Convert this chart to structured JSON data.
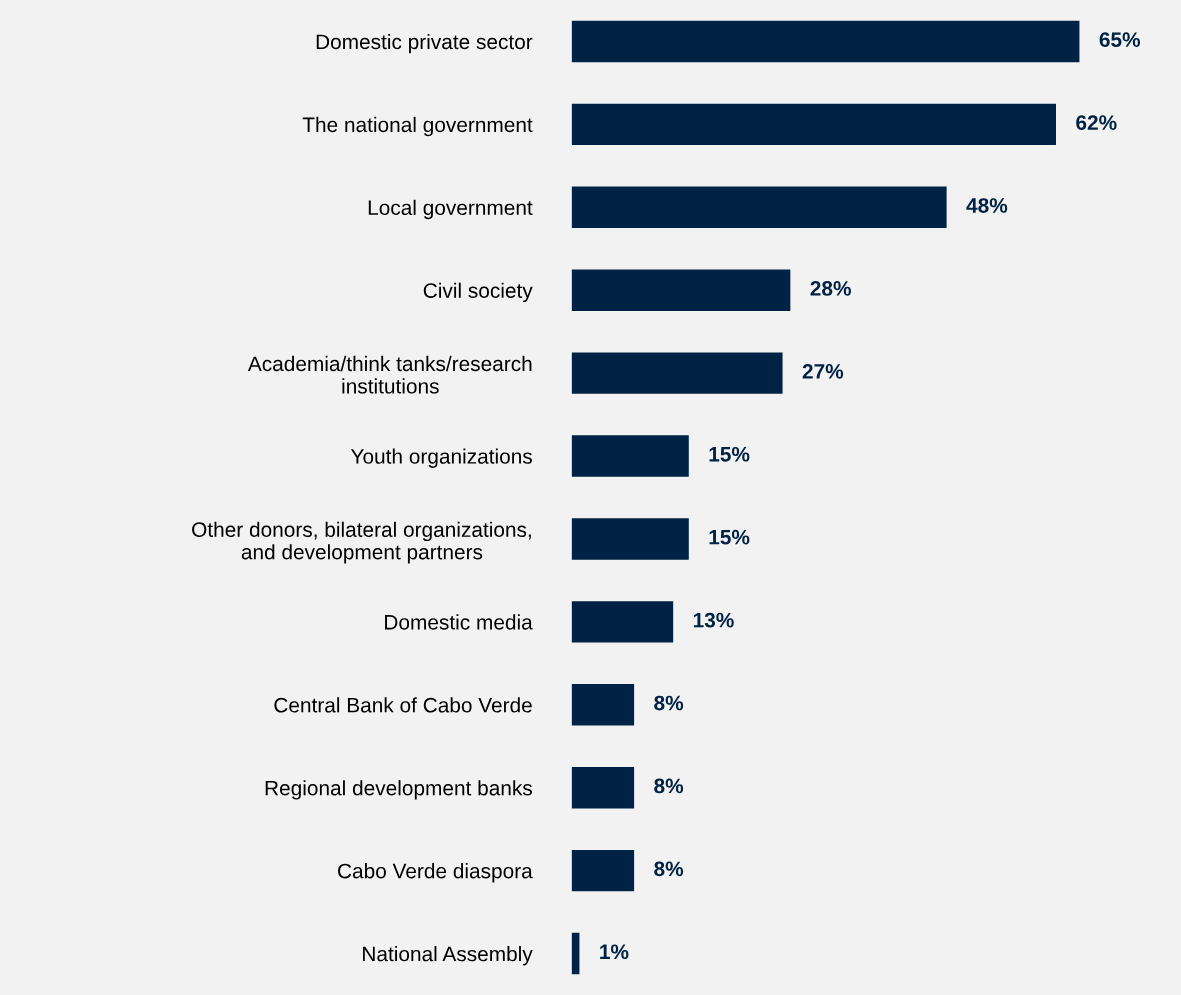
{
  "chart_data": {
    "type": "bar",
    "orientation": "horizontal",
    "categories": [
      "Domestic private sector",
      "The national government",
      "Local government",
      "Civil society",
      "Academia/think tanks/research\ninstitutions",
      "Youth organizations",
      "Other donors, bilateral organizations,\nand development partners",
      "Domestic media",
      "Central Bank of Cabo Verde",
      "Regional development banks",
      "Cabo Verde diaspora",
      "National Assembly"
    ],
    "values": [
      65,
      62,
      48,
      28,
      27,
      15,
      15,
      13,
      8,
      8,
      8,
      1
    ],
    "value_labels": [
      "65%",
      "62%",
      "48%",
      "28%",
      "27%",
      "15%",
      "15%",
      "13%",
      "8%",
      "8%",
      "8%",
      "1%"
    ],
    "color": "#002244",
    "tick_labels": "y",
    "grid": false,
    "legend": false
  }
}
